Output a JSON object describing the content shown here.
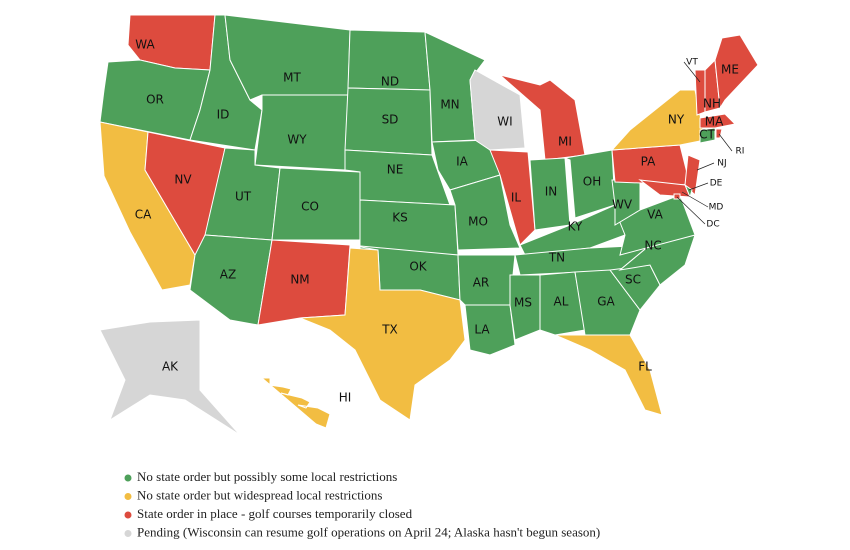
{
  "legend": [
    {
      "color": "#4ea05a",
      "label": "No state order but possibly some local restrictions"
    },
    {
      "color": "#f2bd42",
      "label": "No state order but widespread local restrictions"
    },
    {
      "color": "#dd4b3e",
      "label": "State order in place - golf courses temporarily closed"
    },
    {
      "color": "#d6d6d6",
      "label": "Pending (Wisconsin can resume golf operations on April 24; Alaska hasn't begun season)"
    }
  ],
  "states": [
    {
      "label": "WA",
      "status": 2
    },
    {
      "label": "OR",
      "status": 0
    },
    {
      "label": "CA",
      "status": 1
    },
    {
      "label": "NV",
      "status": 2
    },
    {
      "label": "ID",
      "status": 0
    },
    {
      "label": "MT",
      "status": 0
    },
    {
      "label": "WY",
      "status": 0
    },
    {
      "label": "UT",
      "status": 0
    },
    {
      "label": "CO",
      "status": 0
    },
    {
      "label": "AZ",
      "status": 0
    },
    {
      "label": "NM",
      "status": 2
    },
    {
      "label": "ND",
      "status": 0
    },
    {
      "label": "SD",
      "status": 0
    },
    {
      "label": "NE",
      "status": 0
    },
    {
      "label": "KS",
      "status": 0
    },
    {
      "label": "OK",
      "status": 0
    },
    {
      "label": "TX",
      "status": 1
    },
    {
      "label": "MN",
      "status": 0
    },
    {
      "label": "IA",
      "status": 0
    },
    {
      "label": "MO",
      "status": 0
    },
    {
      "label": "AR",
      "status": 0
    },
    {
      "label": "LA",
      "status": 0
    },
    {
      "label": "WI",
      "status": 3
    },
    {
      "label": "IL",
      "status": 2
    },
    {
      "label": "MI",
      "status": 2
    },
    {
      "label": "IN",
      "status": 0
    },
    {
      "label": "OH",
      "status": 0
    },
    {
      "label": "KY",
      "status": 0
    },
    {
      "label": "TN",
      "status": 0
    },
    {
      "label": "MS",
      "status": 0
    },
    {
      "label": "AL",
      "status": 0
    },
    {
      "label": "GA",
      "status": 0
    },
    {
      "label": "FL",
      "status": 1
    },
    {
      "label": "SC",
      "status": 0
    },
    {
      "label": "NC",
      "status": 0
    },
    {
      "label": "VA",
      "status": 0
    },
    {
      "label": "WV",
      "status": 0
    },
    {
      "label": "PA",
      "status": 2
    },
    {
      "label": "NY",
      "status": 1
    },
    {
      "label": "NJ",
      "status": 2
    },
    {
      "label": "DE",
      "status": 0
    },
    {
      "label": "MD",
      "status": 2
    },
    {
      "label": "DC",
      "status": 2
    },
    {
      "label": "CT",
      "status": 0
    },
    {
      "label": "RI",
      "status": 2
    },
    {
      "label": "MA",
      "status": 2
    },
    {
      "label": "VT",
      "status": 2
    },
    {
      "label": "NH",
      "status": 2
    },
    {
      "label": "ME",
      "status": 2
    },
    {
      "label": "AK",
      "status": 3
    },
    {
      "label": "HI",
      "status": 1
    }
  ]
}
